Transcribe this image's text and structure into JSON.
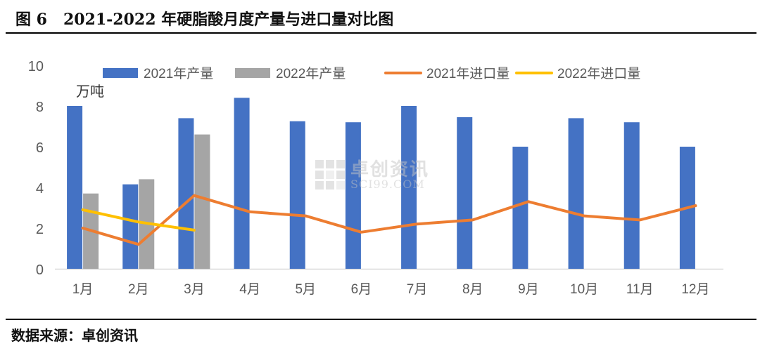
{
  "title": "图 6   2021-2022 年硬脂酸月度产量与进口量对比图",
  "source": "数据来源：卓创资讯",
  "watermark": {
    "cn": "卓创资讯",
    "en": "SCI99.COM"
  },
  "chart_data": {
    "type": "bar",
    "categories": [
      "1月",
      "2月",
      "3月",
      "4月",
      "5月",
      "6月",
      "7月",
      "8月",
      "9月",
      "10月",
      "11月",
      "12月"
    ],
    "unit_label": "万吨",
    "ylim": [
      0,
      10
    ],
    "yticks": [
      0,
      2,
      4,
      6,
      8,
      10
    ],
    "grid": false,
    "legend_position": "top",
    "series": [
      {
        "name": "2021年产量",
        "kind": "bar",
        "color": "#4472C4",
        "values": [
          8.0,
          4.15,
          7.4,
          8.4,
          7.25,
          7.2,
          8.0,
          7.45,
          6.0,
          7.4,
          7.2,
          6.0
        ]
      },
      {
        "name": "2022年产量",
        "kind": "bar",
        "color": "#A5A5A5",
        "values": [
          3.7,
          4.4,
          6.6,
          null,
          null,
          null,
          null,
          null,
          null,
          null,
          null,
          null
        ]
      },
      {
        "name": "2021年进口量",
        "kind": "line",
        "color": "#ED7D31",
        "values": [
          2.0,
          1.2,
          3.6,
          2.8,
          2.6,
          1.8,
          2.2,
          2.4,
          3.3,
          2.6,
          2.4,
          3.1
        ]
      },
      {
        "name": "2022年进口量",
        "kind": "line",
        "color": "#FFC000",
        "values": [
          2.9,
          2.3,
          1.9,
          null,
          null,
          null,
          null,
          null,
          null,
          null,
          null,
          null
        ]
      }
    ]
  }
}
